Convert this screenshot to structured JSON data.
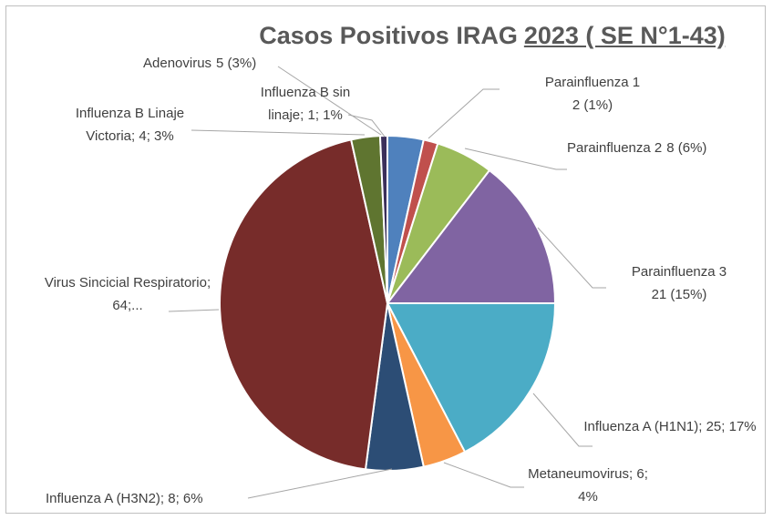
{
  "chart_data": {
    "type": "pie",
    "title_parts": [
      "Casos Positivos IRAG",
      "2023 ( SE N°1-43)"
    ],
    "categories": [
      "Adenovirus",
      "Parainfluenza 1",
      "Parainfluenza 2",
      "Parainfluenza 3",
      "Influenza A (H1N1)",
      "Metaneumovirus",
      "Influenza A (H3N2)",
      "Virus Sincicial Respiratorio",
      "Influenza B Linaje Victoria",
      "Influenza B sin linaje"
    ],
    "values": [
      5,
      2,
      8,
      21,
      25,
      6,
      8,
      64,
      4,
      1
    ],
    "value_labels": [
      "5 (3%)",
      "2 (1%)",
      "8 (6%)",
      "21 (15%)",
      "; 25; 17%",
      "; 6; 4%",
      "; 8; 6%",
      "; 64;...",
      "; 4; 3%",
      "; 1; 1%"
    ],
    "colors": [
      "#4f81bd",
      "#c0504d",
      "#9bbb59",
      "#8064a2",
      "#4bacc6",
      "#f79646",
      "#2c4d75",
      "#772c2a",
      "#5f7530",
      "#3b2f5a"
    ]
  }
}
